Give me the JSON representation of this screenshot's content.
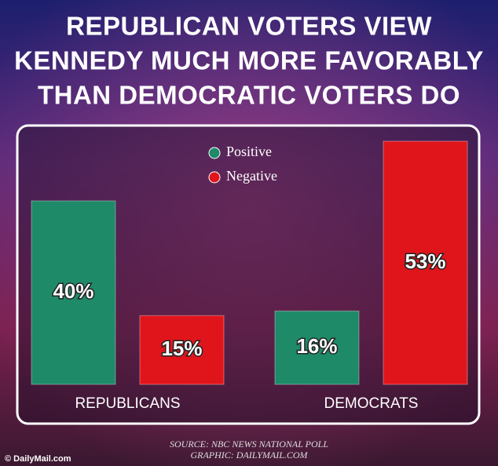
{
  "chart_data": {
    "type": "bar",
    "title": [
      "REPUBLICAN VOTERS VIEW",
      "KENNEDY MUCH MORE FAVORABLY",
      "THAN DEMOCRATIC VOTERS DO"
    ],
    "categories": [
      "REPUBLICANS",
      "DEMOCRATS"
    ],
    "series": [
      {
        "name": "Positive",
        "color": "#1e8a68",
        "values": [
          40,
          16
        ],
        "value_labels": [
          "40%",
          "16%"
        ]
      },
      {
        "name": "Negative",
        "color": "#e0151b",
        "values": [
          15,
          53
        ],
        "value_labels": [
          "15%",
          "53%"
        ]
      }
    ],
    "source": "SOURCE: NBC NEWS NATIONAL POLL",
    "credit": "GRAPHIC: DAILYMAIL.COM",
    "watermark": "© DailyMail.com"
  }
}
